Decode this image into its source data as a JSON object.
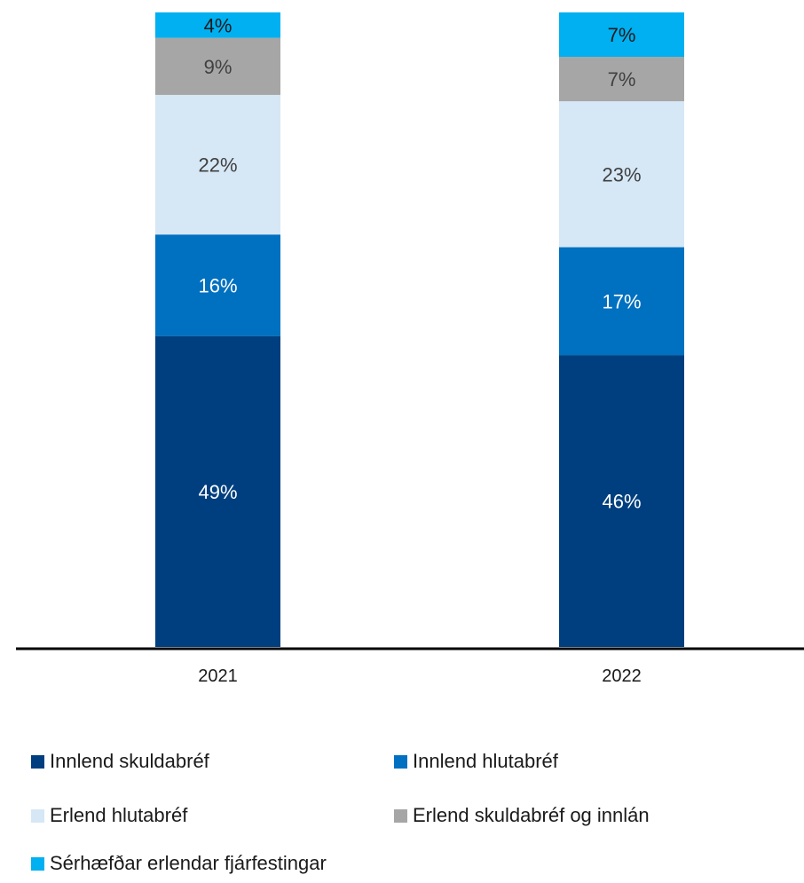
{
  "chart_data": {
    "type": "bar",
    "stacked": true,
    "categories": [
      "2021",
      "2022"
    ],
    "series": [
      {
        "name": "Innlend skuldabréf",
        "values": [
          49,
          46
        ],
        "labels": [
          "49%",
          "46%"
        ],
        "color": "#003f7f",
        "label_color": "#ffffff"
      },
      {
        "name": "Innlend hlutabréf",
        "values": [
          16,
          17
        ],
        "labels": [
          "16%",
          "17%"
        ],
        "color": "#0070c0",
        "label_color": "#ffffff"
      },
      {
        "name": "Erlend hlutabréf",
        "values": [
          22,
          23
        ],
        "labels": [
          "22%",
          "23%"
        ],
        "color": "#d6e7f5",
        "label_color": "#404040"
      },
      {
        "name": "Erlend skuldabréf og innlán",
        "values": [
          9,
          7
        ],
        "labels": [
          "9%",
          "7%"
        ],
        "color": "#a6a6a6",
        "label_color": "#404040"
      },
      {
        "name": "Sérhæfðar erlendar fjárfestingar",
        "values": [
          4,
          7
        ],
        "labels": [
          "4%",
          "7%"
        ],
        "color": "#00b0f0",
        "label_color": "#1a1a1a"
      }
    ],
    "ylim": [
      0,
      100
    ],
    "grid": false,
    "legend_position": "bottom"
  }
}
